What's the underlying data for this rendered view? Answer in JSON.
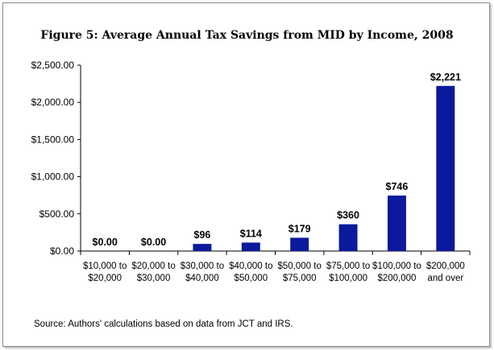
{
  "chart_data": {
    "type": "bar",
    "title": "Figure 5: Average Annual Tax Savings from MID by Income, 2008",
    "categories": [
      [
        "$10,000 to",
        "$20,000"
      ],
      [
        "$20,000 to",
        "$30,000"
      ],
      [
        "$30,000 to",
        "$40,000"
      ],
      [
        "$40,000 to",
        "$50,000"
      ],
      [
        "$50,000 to",
        "$75,000"
      ],
      [
        "$75,000 to",
        "$100,000"
      ],
      [
        "$100,000 to",
        "$200,000"
      ],
      [
        "$200,000",
        "and over"
      ]
    ],
    "values": [
      0,
      0,
      96,
      114,
      179,
      360,
      746,
      2221
    ],
    "data_labels": [
      "$0.00",
      "$0.00",
      "$96",
      "$114",
      "$179",
      "$360",
      "$746",
      "$2,221"
    ],
    "ylim": [
      0,
      2500
    ],
    "yticks": [
      0,
      500,
      1000,
      1500,
      2000,
      2500
    ],
    "ytick_labels": [
      "$0.00",
      "$500.00",
      "$1,000.00",
      "$1,500.00",
      "$2,000.00",
      "$2,500.00"
    ],
    "xlabel": "",
    "ylabel": "",
    "grid": false,
    "bar_color": "#0b1a9c"
  },
  "source": "Source: Authors' calculations based on data from JCT and IRS."
}
